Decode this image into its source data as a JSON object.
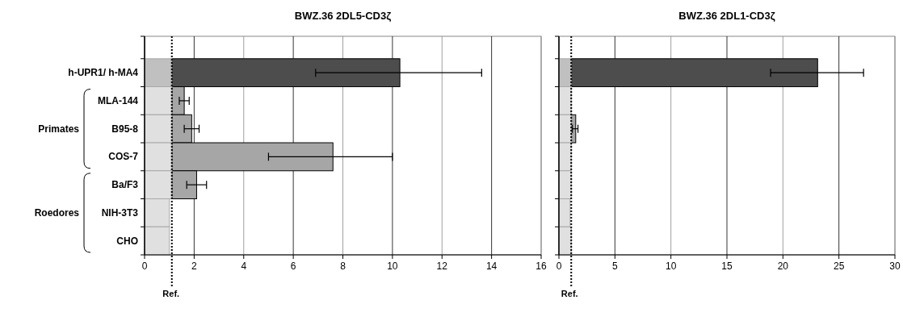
{
  "chart_data": [
    {
      "type": "bar",
      "orientation": "horizontal",
      "stacked": true,
      "title": "BWZ.36 2DL5-CD3ζ",
      "categories": [
        "h-UPR1/ h-MA4",
        "MLA-144",
        "B95-8",
        "COS-7",
        "Ba/F3",
        "NIH-3T3",
        "CHO"
      ],
      "series": [
        {
          "colors": [
            "#c0c0c0",
            "#e0e0e0",
            "#e0e0e0",
            "#e0e0e0",
            "#e0e0e0",
            "#e0e0e0",
            "#e0e0e0"
          ],
          "values": [
            1.1,
            1.1,
            1.1,
            1.1,
            1.1,
            1.0,
            1.0
          ]
        },
        {
          "colors": [
            "#4d4d4d",
            "#a6a6a6",
            "#a6a6a6",
            "#a6a6a6",
            "#a6a6a6",
            null,
            null
          ],
          "values": [
            9.2,
            0.5,
            0.8,
            6.5,
            1.0,
            null,
            null
          ],
          "errors": [
            [
              6.9,
              13.6
            ],
            [
              1.4,
              1.8
            ],
            [
              1.6,
              2.2
            ],
            [
              5.0,
              10.0
            ],
            [
              1.7,
              2.5
            ],
            null,
            null
          ]
        }
      ],
      "xlim": [
        0,
        16
      ],
      "xticks": [
        0,
        2,
        4,
        6,
        8,
        10,
        12,
        14,
        16
      ],
      "grid": "x",
      "ref_lines": [
        {
          "axis": "x",
          "value": 1.1,
          "label": "Ref.",
          "line_style": "dotted",
          "color": "#000000"
        }
      ],
      "annotations": [
        "Primates",
        "Roedores"
      ]
    },
    {
      "type": "bar",
      "orientation": "horizontal",
      "stacked": true,
      "title": "BWZ.36 2DL1-CD3ζ",
      "categories": [
        null,
        null,
        null,
        null,
        null,
        null,
        null
      ],
      "series": [
        {
          "colors": [
            "#c0c0c0",
            "#e0e0e0",
            "#e0e0e0",
            "#e0e0e0",
            "#e0e0e0",
            "#e0e0e0",
            "#e0e0e0"
          ],
          "values": [
            1.1,
            1.1,
            1.1,
            1.1,
            1.1,
            1.0,
            1.1
          ]
        },
        {
          "colors": [
            "#4d4d4d",
            null,
            "#a6a6a6",
            null,
            null,
            null,
            null
          ],
          "values": [
            22.0,
            null,
            0.4,
            null,
            null,
            null,
            null
          ],
          "errors": [
            [
              18.9,
              27.2
            ],
            null,
            [
              1.2,
              1.7
            ],
            null,
            null,
            null,
            null
          ]
        }
      ],
      "xlim": [
        0,
        30
      ],
      "xticks": [
        0,
        5,
        10,
        15,
        20,
        25,
        30
      ],
      "grid": "x",
      "tick_labels": "x",
      "ref_lines": [
        {
          "axis": "x",
          "value": 1.1,
          "label": "Ref.",
          "line_style": "dotted",
          "color": "#000000"
        }
      ]
    }
  ]
}
